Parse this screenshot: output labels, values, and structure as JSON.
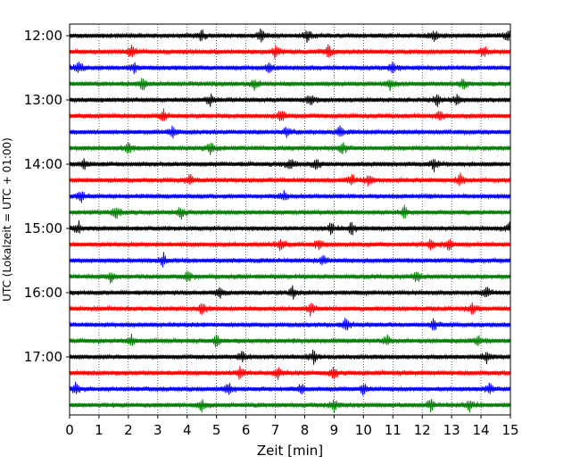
{
  "chart_data": {
    "type": "line",
    "title": "",
    "xlabel": "Zeit  [min]",
    "ylabel": "UTC (Lokalzeit = UTC + 01:00)",
    "xlim": [
      0,
      15
    ],
    "x_ticks": [
      "0",
      "1",
      "2",
      "3",
      "4",
      "5",
      "6",
      "7",
      "8",
      "9",
      "10",
      "11",
      "12",
      "13",
      "14",
      "15"
    ],
    "y_ticks": [
      "12:00",
      "13:00",
      "14:00",
      "15:00",
      "16:00",
      "17:00"
    ],
    "row_interval_minutes": 15,
    "grid": "vertical dotted lines at each minute",
    "color_cycle": [
      "#000000",
      "#ff0000",
      "#0000ff",
      "#008000"
    ],
    "rows": [
      {
        "start": "12:00",
        "color": "#000000",
        "events_min": [
          4.5,
          6.5,
          8.1,
          12.4,
          14.9
        ]
      },
      {
        "start": "12:15",
        "color": "#ff0000",
        "events_min": [
          2.1,
          7.0,
          8.8,
          14.1
        ]
      },
      {
        "start": "12:30",
        "color": "#0000ff",
        "events_min": [
          0.3,
          2.2,
          6.8,
          11.0
        ]
      },
      {
        "start": "12:45",
        "color": "#008000",
        "events_min": [
          2.5,
          6.3,
          10.9,
          13.4
        ]
      },
      {
        "start": "13:00",
        "color": "#000000",
        "events_min": [
          4.8,
          8.2,
          12.5,
          13.2
        ]
      },
      {
        "start": "13:15",
        "color": "#ff0000",
        "events_min": [
          3.2,
          7.2,
          12.6
        ]
      },
      {
        "start": "13:30",
        "color": "#0000ff",
        "events_min": [
          3.5,
          7.4,
          9.2
        ]
      },
      {
        "start": "13:45",
        "color": "#008000",
        "events_min": [
          2.0,
          4.8,
          9.3
        ]
      },
      {
        "start": "14:00",
        "color": "#000000",
        "events_min": [
          0.5,
          7.5,
          8.4,
          12.4
        ]
      },
      {
        "start": "14:15",
        "color": "#ff0000",
        "events_min": [
          4.1,
          9.6,
          10.2,
          13.3
        ]
      },
      {
        "start": "14:30",
        "color": "#0000ff",
        "events_min": [
          0.4,
          7.3
        ]
      },
      {
        "start": "14:45",
        "color": "#008000",
        "events_min": [
          1.6,
          3.8,
          11.4
        ]
      },
      {
        "start": "15:00",
        "color": "#000000",
        "events_min": [
          0.3,
          8.9,
          9.6,
          15.0
        ]
      },
      {
        "start": "15:15",
        "color": "#ff0000",
        "events_min": [
          7.2,
          8.5,
          12.3,
          12.9
        ]
      },
      {
        "start": "15:30",
        "color": "#0000ff",
        "events_min": [
          3.2,
          8.6
        ]
      },
      {
        "start": "15:45",
        "color": "#008000",
        "events_min": [
          1.4,
          4.0,
          11.8
        ]
      },
      {
        "start": "16:00",
        "color": "#000000",
        "events_min": [
          5.1,
          7.6,
          14.2
        ]
      },
      {
        "start": "16:15",
        "color": "#ff0000",
        "events_min": [
          4.5,
          8.2,
          13.7
        ]
      },
      {
        "start": "16:30",
        "color": "#0000ff",
        "events_min": [
          9.4,
          12.4
        ]
      },
      {
        "start": "16:45",
        "color": "#008000",
        "events_min": [
          2.1,
          5.0,
          10.8,
          13.9
        ]
      },
      {
        "start": "17:00",
        "color": "#000000",
        "events_min": [
          5.9,
          8.3,
          14.2
        ]
      },
      {
        "start": "17:15",
        "color": "#ff0000",
        "events_min": [
          5.8,
          7.1,
          9.0
        ]
      },
      {
        "start": "17:30",
        "color": "#0000ff",
        "events_min": [
          0.2,
          5.4,
          7.9,
          10.0,
          14.3
        ]
      },
      {
        "start": "17:45",
        "color": "#008000",
        "events_min": [
          4.5,
          9.0,
          12.3,
          13.6
        ]
      }
    ]
  }
}
